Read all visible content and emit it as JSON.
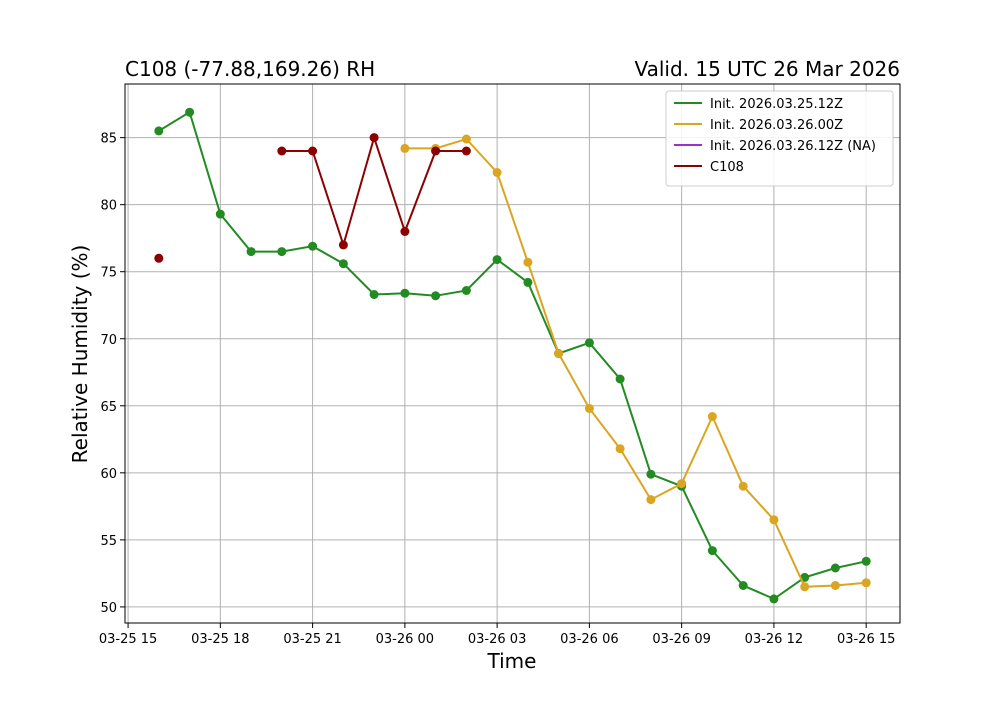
{
  "chart_data": {
    "type": "line",
    "title_left": "C108 (-77.88,169.26) RH",
    "title_right": "Valid. 15 UTC 26 Mar 2026",
    "xlabel": "Time",
    "ylabel": "Relative Humidity (%)",
    "x_tick_labels": [
      "03-25 15",
      "03-25 18",
      "03-25 21",
      "03-26 00",
      "03-26 03",
      "03-26 06",
      "03-26 09",
      "03-26 12",
      "03-26 15"
    ],
    "x_tick_hours": [
      15,
      18,
      21,
      24,
      27,
      30,
      33,
      36,
      39
    ],
    "xlim_hours": [
      14.9,
      40.1
    ],
    "y_ticks": [
      50,
      55,
      60,
      65,
      70,
      75,
      80,
      85
    ],
    "ylim": [
      48.8,
      89.0
    ],
    "grid": true,
    "legend_position": "top-right",
    "series": [
      {
        "name": "Init. 2026.03.25.12Z",
        "color": "#228B22",
        "line": true,
        "points": [
          [
            16,
            85.5
          ],
          [
            17,
            86.9
          ],
          [
            18,
            79.3
          ],
          [
            19,
            76.5
          ],
          [
            20,
            76.5
          ],
          [
            21,
            76.9
          ],
          [
            22,
            75.6
          ],
          [
            23,
            73.3
          ],
          [
            24,
            73.4
          ],
          [
            25,
            73.2
          ],
          [
            26,
            73.6
          ],
          [
            27,
            75.9
          ],
          [
            28,
            74.2
          ],
          [
            29,
            68.9
          ],
          [
            30,
            69.7
          ],
          [
            31,
            67.0
          ],
          [
            32,
            59.9
          ],
          [
            33,
            59.0
          ],
          [
            34,
            54.2
          ],
          [
            35,
            51.6
          ],
          [
            36,
            50.6
          ],
          [
            37,
            52.2
          ],
          [
            38,
            52.9
          ],
          [
            39,
            53.4
          ]
        ]
      },
      {
        "name": "Init. 2026.03.26.00Z",
        "color": "#DAA520",
        "line": true,
        "points": [
          [
            24,
            84.2
          ],
          [
            25,
            84.2
          ],
          [
            26,
            84.9
          ],
          [
            27,
            82.4
          ],
          [
            28,
            75.7
          ],
          [
            29,
            68.9
          ],
          [
            30,
            64.8
          ],
          [
            31,
            61.8
          ],
          [
            32,
            58.0
          ],
          [
            33,
            59.2
          ],
          [
            34,
            64.2
          ],
          [
            35,
            59.0
          ],
          [
            36,
            56.5
          ],
          [
            37,
            51.5
          ],
          [
            38,
            51.6
          ],
          [
            39,
            51.8
          ]
        ]
      },
      {
        "name": "Init. 2026.03.26.12Z (NA)",
        "color": "#9932CC",
        "line": true,
        "points": []
      },
      {
        "name": "C108",
        "color": "#8B0000",
        "line": true,
        "points": [
          [
            16,
            76.0
          ],
          [
            20,
            84.0
          ],
          [
            21,
            84.0
          ],
          [
            22,
            77.0
          ],
          [
            23,
            85.0
          ],
          [
            24,
            78.0
          ],
          [
            25,
            84.0
          ],
          [
            26,
            84.0
          ]
        ],
        "line_from_index": 1
      }
    ]
  }
}
